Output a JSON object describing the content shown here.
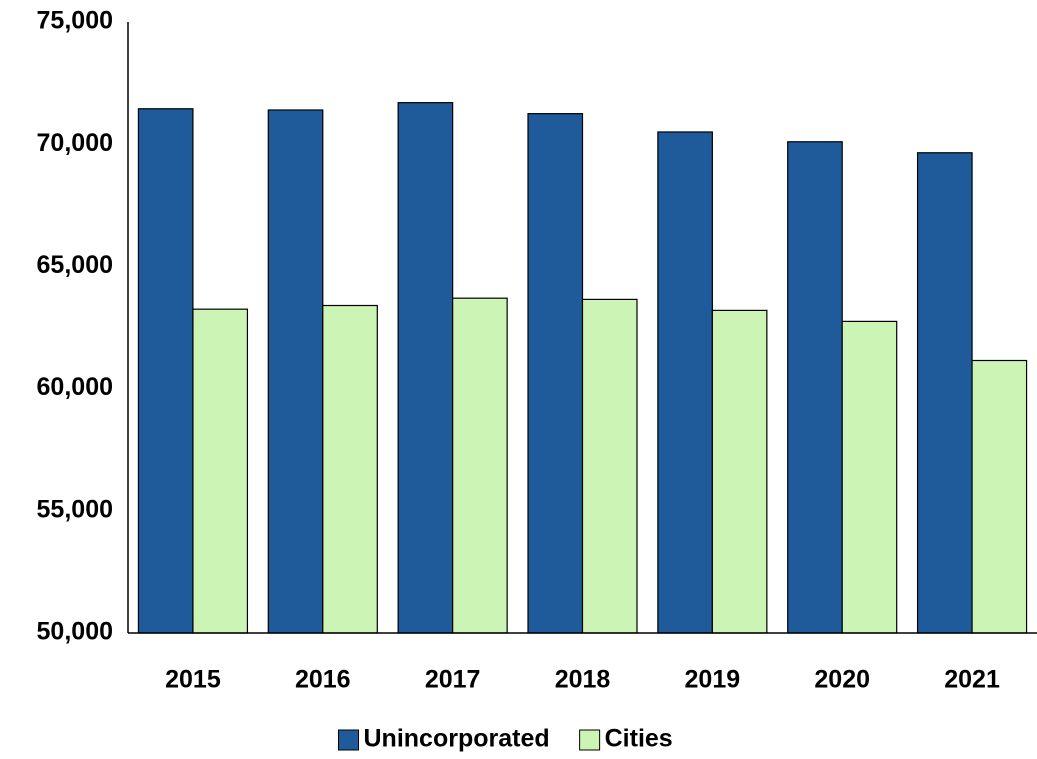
{
  "chart_data": {
    "type": "bar",
    "categories": [
      "2015",
      "2016",
      "2017",
      "2018",
      "2019",
      "2020",
      "2021"
    ],
    "series": [
      {
        "name": "Unincorporated",
        "color": "#1f5b9b",
        "values": [
          71450,
          71400,
          71700,
          71250,
          70500,
          70100,
          69650
        ]
      },
      {
        "name": "Cities",
        "color": "#ccf5b5",
        "values": [
          63250,
          63400,
          63700,
          63650,
          63200,
          62750,
          61150
        ]
      }
    ],
    "ylim": [
      50000,
      75000
    ],
    "yticks": [
      {
        "value": 50000,
        "label": "50,000"
      },
      {
        "value": 55000,
        "label": "55,000"
      },
      {
        "value": 60000,
        "label": "60,000"
      },
      {
        "value": 65000,
        "label": "65,000"
      },
      {
        "value": 70000,
        "label": "70,000"
      },
      {
        "value": 75000,
        "label": "75,000"
      }
    ],
    "grid": false,
    "legend": "bottom"
  }
}
